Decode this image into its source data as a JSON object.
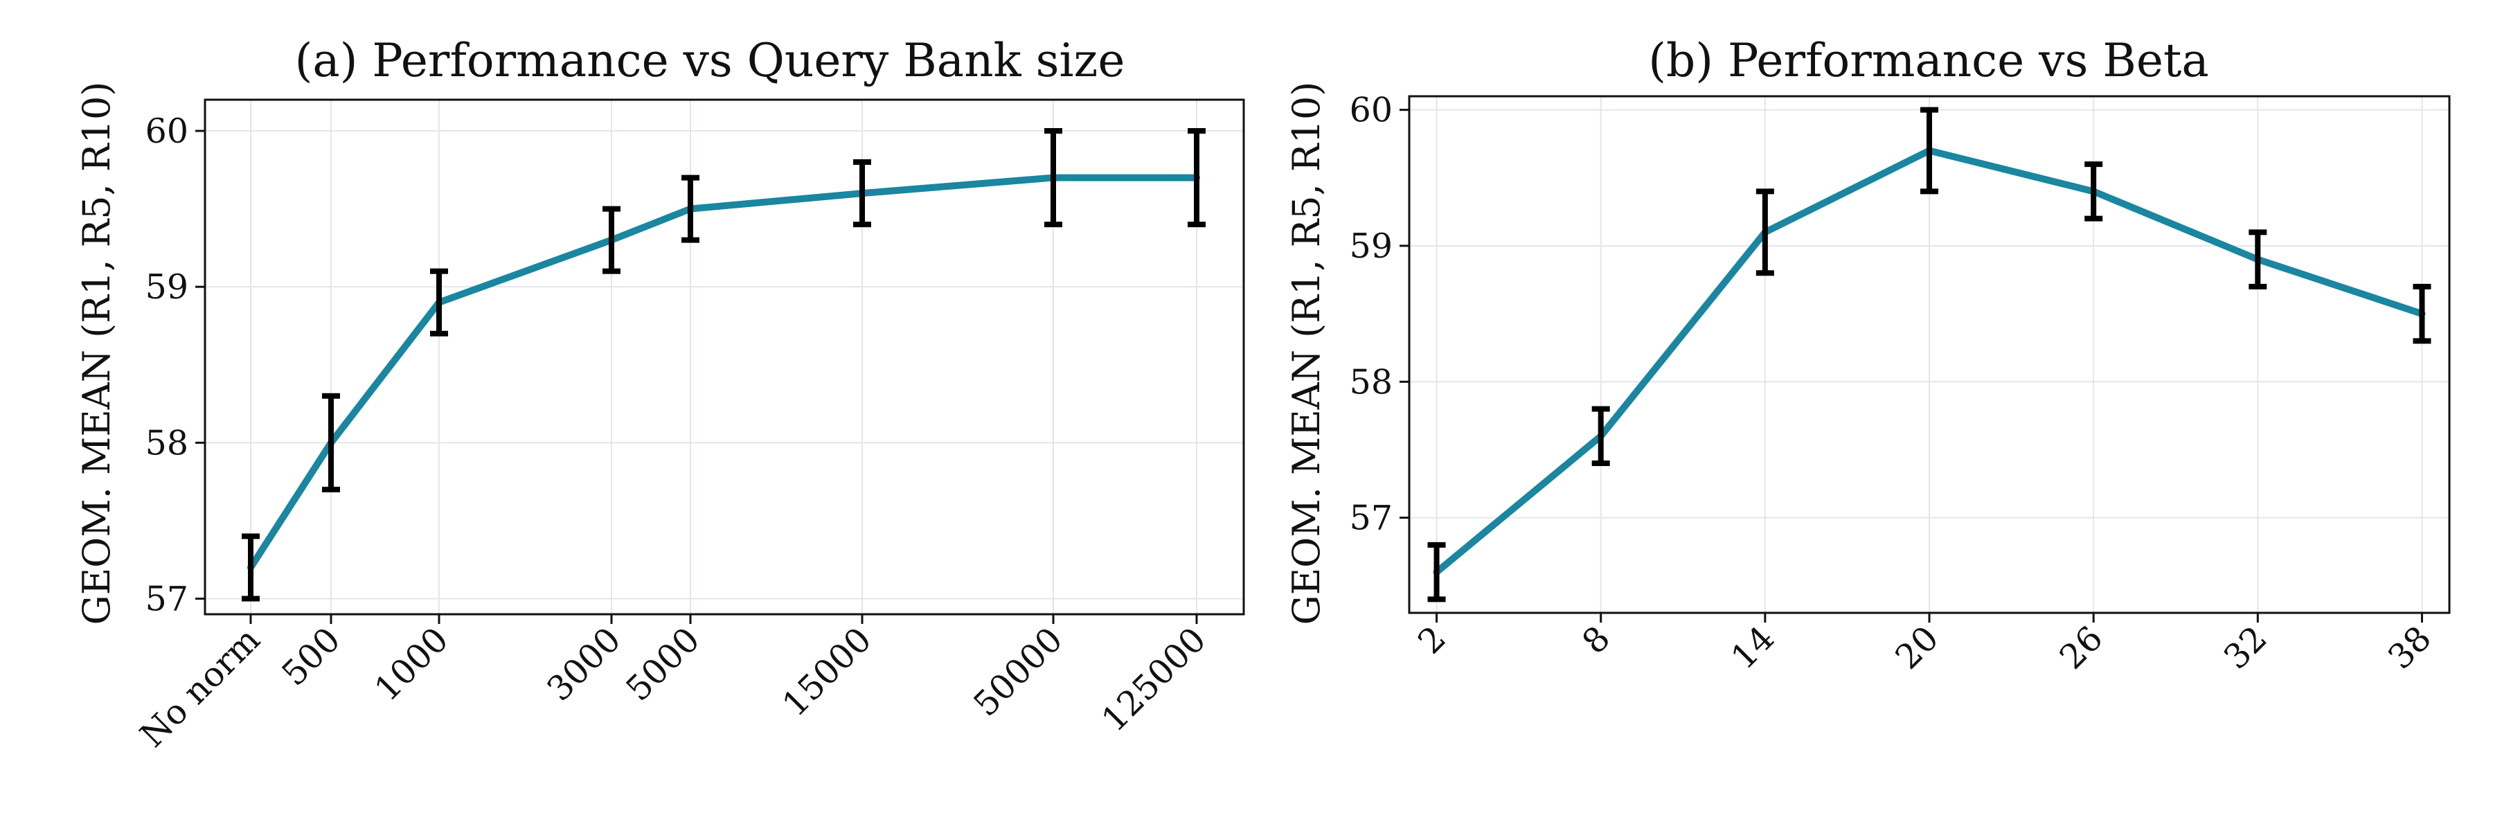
{
  "style": {
    "line_color": "#1a86a0",
    "error_color": "#000000",
    "grid_color": "#e2e6ee"
  },
  "chart_data": [
    {
      "type": "line",
      "title": "(a) Performance vs Query Bank size",
      "xlabel": "",
      "ylabel": "GEOM. MEAN (R1, R5, R10)",
      "x_scale": "custom",
      "x_ticks": [
        0,
        500,
        1000,
        3000,
        5000,
        15000,
        50000,
        125000
      ],
      "x_tick_labels": [
        "No norm",
        "500",
        "1000",
        "3000",
        "5000",
        "15000",
        "50000",
        "125000"
      ],
      "y_ticks": [
        57,
        58,
        59,
        60
      ],
      "ylim": [
        56.9,
        60.2
      ],
      "grid": true,
      "series": [
        {
          "x": [
            0,
            500,
            1000,
            3000,
            5000,
            15000,
            50000,
            125000
          ],
          "values": [
            57.2,
            58.0,
            58.9,
            59.3,
            59.5,
            59.6,
            59.7,
            59.7
          ],
          "error": [
            0.2,
            0.3,
            0.2,
            0.2,
            0.2,
            0.2,
            0.3,
            0.3
          ]
        }
      ]
    },
    {
      "type": "line",
      "title": "(b) Performance vs Beta",
      "xlabel": "",
      "ylabel": "GEOM. MEAN (R1, R5, R10)",
      "x_scale": "linear",
      "x_ticks": [
        2,
        8,
        14,
        20,
        26,
        32,
        38
      ],
      "x_tick_labels": [
        "2",
        "8",
        "14",
        "20",
        "26",
        "32",
        "38"
      ],
      "xlim": [
        1,
        39
      ],
      "y_ticks": [
        57,
        58,
        59,
        60
      ],
      "ylim": [
        56.3,
        60.1
      ],
      "grid": true,
      "series": [
        {
          "x": [
            2,
            8,
            14,
            20,
            26,
            32,
            38
          ],
          "values": [
            56.6,
            57.6,
            59.1,
            59.7,
            59.4,
            58.9,
            58.5
          ],
          "error": [
            0.2,
            0.2,
            0.3,
            0.3,
            0.2,
            0.2,
            0.2
          ]
        }
      ]
    }
  ]
}
